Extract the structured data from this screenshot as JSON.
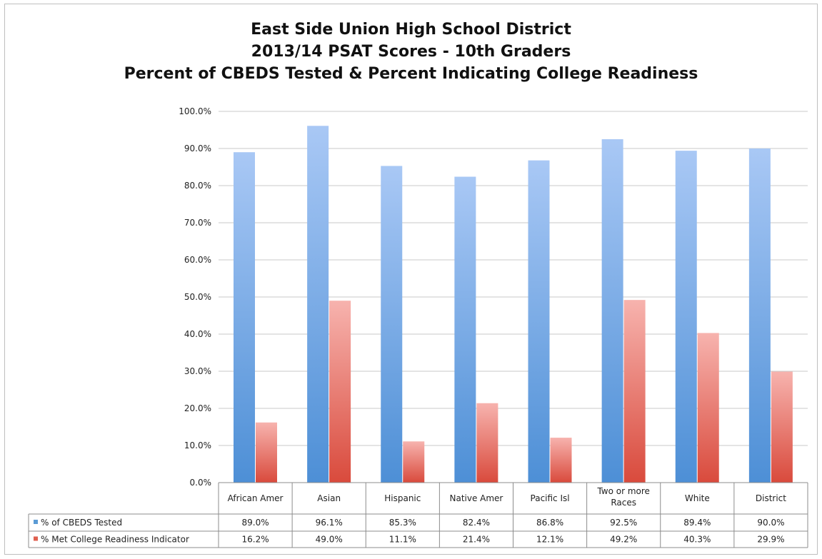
{
  "chart_data": {
    "type": "bar",
    "title": [
      "East Side Union High School District",
      "2013/14 PSAT Scores - 10th Graders",
      "Percent of CBEDS Tested & Percent Indicating College Readiness"
    ],
    "categories": [
      "African Amer",
      "Asian",
      "Hispanic",
      "Native Amer",
      "Pacific Isl",
      "Two or more Races",
      "White",
      "District"
    ],
    "series": [
      {
        "name": "% of CBEDS Tested",
        "values": [
          89.0,
          96.1,
          85.3,
          82.4,
          86.8,
          92.5,
          89.4,
          90.0
        ],
        "labels": [
          "89.0%",
          "96.1%",
          "85.3%",
          "82.4%",
          "86.8%",
          "92.5%",
          "89.4%",
          "90.0%"
        ],
        "color_top": "#a9c8f5",
        "color_bottom": "#4d8fd6",
        "legend_color": "#5b9bd5"
      },
      {
        "name": "% Met College Readiness Indicator",
        "values": [
          16.2,
          49.0,
          11.1,
          21.4,
          12.1,
          49.2,
          40.3,
          29.9
        ],
        "labels": [
          "16.2%",
          "49.0%",
          "11.1%",
          "21.4%",
          "12.1%",
          "49.2%",
          "40.3%",
          "29.9%"
        ],
        "color_top": "#f7b3ae",
        "color_bottom": "#d94a3c",
        "legend_color": "#e06050"
      }
    ],
    "ylim": [
      0,
      100
    ],
    "yticks": [
      "0.0%",
      "10.0%",
      "20.0%",
      "30.0%",
      "40.0%",
      "50.0%",
      "60.0%",
      "70.0%",
      "80.0%",
      "90.0%",
      "100.0%"
    ],
    "grid": true,
    "legend": "data table below chart"
  }
}
